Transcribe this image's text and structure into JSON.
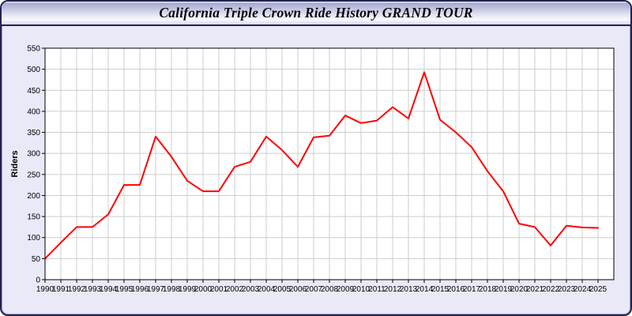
{
  "window": {
    "title": "California Triple Crown Ride History GRAND TOUR"
  },
  "colors": {
    "window_border": "#23234e",
    "body_background": "#e9e9f7",
    "titlebar_lavender": "#c2c2e0",
    "plot_background": "#ffffff",
    "grid_color": "#cccccc",
    "axis_color": "#000000",
    "series_red": "#ff0000"
  },
  "chart_data": {
    "type": "line",
    "title": "California Triple Crown Ride History GRAND TOUR",
    "xlabel": "",
    "ylabel": "Riders",
    "x": [
      1990,
      1991,
      1992,
      1993,
      1994,
      1995,
      1996,
      1997,
      1998,
      1999,
      2000,
      2001,
      2002,
      2003,
      2004,
      2005,
      2006,
      2007,
      2008,
      2009,
      2010,
      2011,
      2012,
      2013,
      2014,
      2015,
      2016,
      2017,
      2018,
      2019,
      2020,
      2021,
      2022,
      2023,
      2024,
      2025
    ],
    "series": [
      {
        "name": "Riders",
        "color": "#ff0000",
        "values": [
          50,
          88,
          125,
          125,
          155,
          225,
          225,
          340,
          292,
          235,
          210,
          210,
          268,
          280,
          340,
          308,
          268,
          338,
          342,
          390,
          372,
          378,
          410,
          383,
          493,
          380,
          350,
          315,
          258,
          210,
          133,
          125,
          81,
          128,
          124,
          123
        ]
      }
    ],
    "ylim": [
      0,
      550
    ],
    "yticks": [
      0,
      50,
      100,
      150,
      200,
      250,
      300,
      350,
      400,
      450,
      500,
      550
    ],
    "grid": true,
    "legend_position": "none",
    "line_width": 2
  }
}
